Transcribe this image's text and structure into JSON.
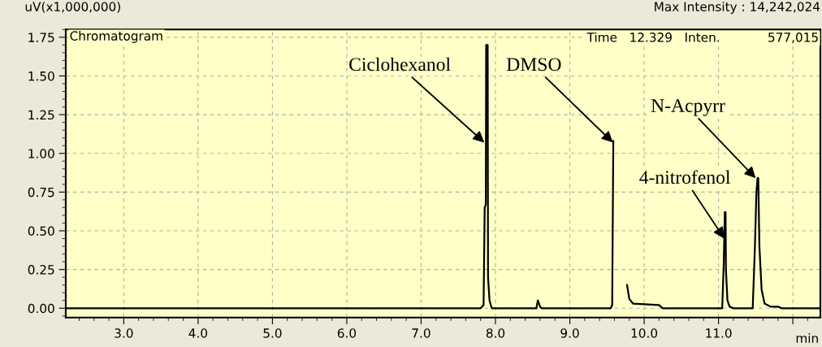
{
  "chart_data": {
    "type": "line",
    "ylabel": "uV(x1,000,000)",
    "xlabel": "min",
    "x": [
      2.22,
      7.8,
      7.84,
      7.855,
      7.87,
      7.875,
      7.895,
      7.9,
      7.92,
      7.95,
      8.55,
      8.57,
      8.6,
      8.62,
      9.55,
      9.57,
      9.585,
      9.6,
      9.75,
      9.77,
      9.8,
      9.85,
      10.2,
      10.25,
      11.05,
      11.07,
      11.085,
      11.095,
      11.1,
      11.12,
      11.15,
      11.2,
      11.46,
      11.49,
      11.51,
      11.525,
      11.535,
      11.55,
      11.58,
      11.62,
      11.7,
      11.8,
      11.85,
      12.37
    ],
    "series": [
      {
        "color": "#000000",
        "values": [
          0,
          0,
          0.02,
          0.65,
          0.67,
          1.7,
          1.7,
          0.2,
          0.05,
          0,
          0,
          0.05,
          0.01,
          0,
          0,
          0.02,
          1.08,
          null,
          null,
          0.15,
          0.06,
          0.03,
          0.02,
          0,
          0,
          0.28,
          0.62,
          0.62,
          0.25,
          0.05,
          0.01,
          0,
          0,
          0.4,
          0.75,
          0.84,
          0.84,
          0.4,
          0.12,
          0.03,
          0.01,
          0.01,
          0,
          0
        ]
      }
    ],
    "xlim": [
      2.22,
      12.37
    ],
    "ylim": [
      -0.06,
      1.8
    ],
    "xticks": [
      {
        "value": 3,
        "label": "3.0"
      },
      {
        "value": 4,
        "label": "4.0"
      },
      {
        "value": 5,
        "label": "5.0"
      },
      {
        "value": 6,
        "label": "6.0"
      },
      {
        "value": 7,
        "label": "7.0"
      },
      {
        "value": 8,
        "label": "8.0"
      },
      {
        "value": 9,
        "label": "9.0"
      },
      {
        "value": 10,
        "label": "10.0"
      },
      {
        "value": 11,
        "label": "11.0"
      },
      {
        "value": 12,
        "label": null
      }
    ],
    "yticks": [
      {
        "value": 0,
        "label": "0.00"
      },
      {
        "value": 0.25,
        "label": "0.25"
      },
      {
        "value": 0.5,
        "label": "0.50"
      },
      {
        "value": 0.75,
        "label": "0.75"
      },
      {
        "value": 1,
        "label": "1.00"
      },
      {
        "value": 1.25,
        "label": "1.25"
      },
      {
        "value": 1.5,
        "label": "1.50"
      },
      {
        "value": 1.75,
        "label": "1.75"
      }
    ],
    "grid": true,
    "line_style": "solid",
    "marker": "none",
    "annotations": [
      {
        "text": "Ciclohexanol",
        "x": 7.85,
        "y": 1.07
      },
      {
        "text": "DMSO",
        "x": 9.58,
        "y": 1.07
      },
      {
        "text": "N-Acpyrr",
        "x": 11.5,
        "y": 0.84
      },
      {
        "text": "4-nitrofenol",
        "x": 11.078,
        "y": 0.45
      },
      "Chromatogram",
      "Max Intensity : 14,242,024",
      "Time   12.329   Inten.            577,015"
    ]
  }
}
